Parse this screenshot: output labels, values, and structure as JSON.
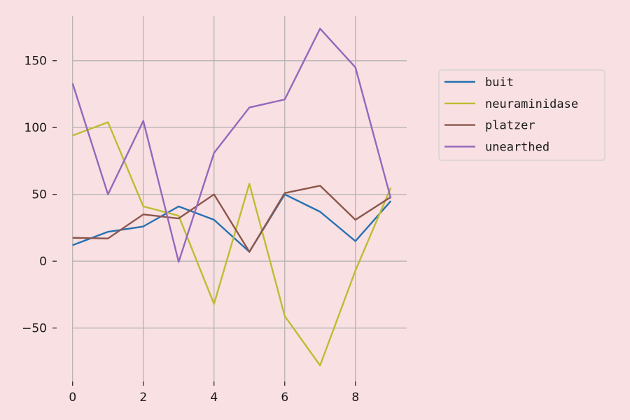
{
  "chart_data": {
    "type": "line",
    "title": "",
    "xlabel": "",
    "ylabel": "",
    "x": [
      0,
      1,
      2,
      3,
      4,
      5,
      6,
      7,
      8,
      9
    ],
    "xlim": [
      -0.45,
      9.45
    ],
    "ylim": [
      -90,
      186
    ],
    "xticks": [
      0,
      2,
      4,
      6,
      8
    ],
    "yticks": [
      -50,
      0,
      50,
      100,
      150
    ],
    "xtick_labels": [
      "0",
      "2",
      "4",
      "6",
      "8"
    ],
    "ytick_labels": [
      "−50",
      "0",
      "50",
      "100",
      "150"
    ],
    "grid": true,
    "legend_position": "right, outside plot",
    "background": "#f9e0e2",
    "series": [
      {
        "name": "buit",
        "color": "#2571b2",
        "values": [
          12,
          22,
          26,
          41,
          31,
          7,
          50,
          37,
          15,
          45
        ]
      },
      {
        "name": "neuraminidase",
        "color": "#bcbd32",
        "values": [
          94,
          104,
          41,
          34,
          -32,
          58,
          -41,
          -78,
          -7,
          55
        ]
      },
      {
        "name": "platzer",
        "color": "#8c564b",
        "values": [
          17.5,
          17,
          35,
          32,
          50,
          7,
          51,
          56.5,
          31,
          48
        ]
      },
      {
        "name": "unearthed",
        "color": "#9467bd",
        "values": [
          133,
          50,
          105,
          -0.5,
          81,
          115,
          121,
          174,
          145,
          47
        ]
      }
    ]
  }
}
